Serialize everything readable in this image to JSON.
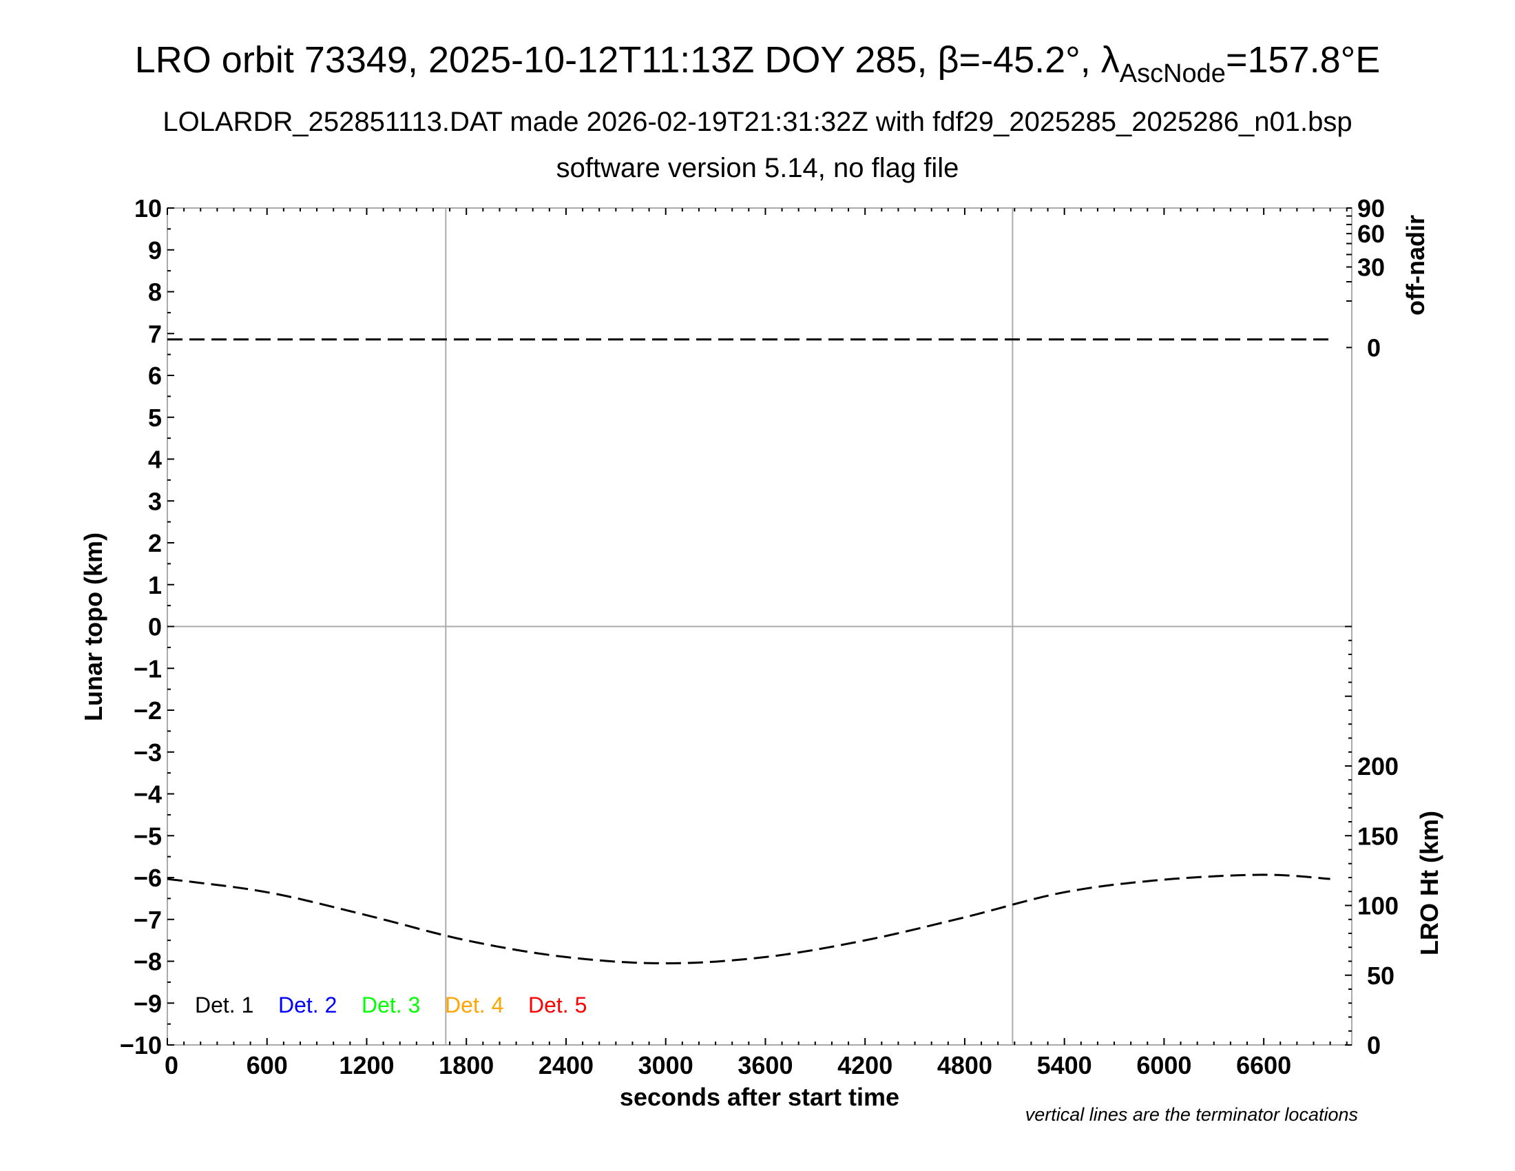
{
  "chart_data": {
    "type": "line",
    "title_main": "LRO orbit 73349, 2025-10-12T11:13Z DOY 285, β=-45.2°, λ",
    "title_sub": "AscNode",
    "title_end": "=157.8°E",
    "subtitle1": "LOLARDR_252851113.DAT made 2026-02-19T21:31:32Z with fdf29_2025285_2025286_n01.bsp",
    "subtitle2": "software version 5.14, no flag file",
    "xlabel": "seconds after start time",
    "ylabel": "Lunar topo (km)",
    "y2label_top": "off-nadir",
    "y2label_bottom": "LRO Ht (km)",
    "note": "vertical lines are the terminator locations",
    "xlim": [
      0,
      7130
    ],
    "ylim": [
      -10,
      10
    ],
    "x_ticks": [
      "0",
      "600",
      "1200",
      "1800",
      "2400",
      "3000",
      "3600",
      "4200",
      "4800",
      "5400",
      "6000",
      "6600"
    ],
    "y_ticks": [
      "10",
      "9",
      "8",
      "7",
      "6",
      "5",
      "4",
      "3",
      "2",
      "1",
      "0",
      "−1",
      "−2",
      "−3",
      "−4",
      "−5",
      "−6",
      "−7",
      "−8",
      "−9",
      "−10"
    ],
    "offnadir_ticks": [
      "0",
      "30",
      "60",
      "90"
    ],
    "offnadir_scale": "sqrt",
    "offnadir_range": [
      0,
      90
    ],
    "height_ticks": [
      "0",
      "50",
      "100",
      "150",
      "200"
    ],
    "height_range": [
      0,
      300
    ],
    "terminators_s": [
      1676,
      5088
    ],
    "legend": [
      {
        "label": "Det. 1",
        "color": "#000000"
      },
      {
        "label": "Det. 2",
        "color": "#0000ff"
      },
      {
        "label": "Det. 3",
        "color": "#00ff00"
      },
      {
        "label": "Det. 4",
        "color": "#ffa500"
      },
      {
        "label": "Det. 5",
        "color": "#ff0000"
      }
    ],
    "series": [
      {
        "role": "off-nadir (deg)",
        "style": "dashed",
        "x": [
          0,
          1000,
          2000,
          3000,
          4000,
          5000,
          6000,
          7000
        ],
        "values": [
          0.3,
          0.3,
          0.3,
          0.3,
          0.3,
          0.3,
          0.3,
          0.3
        ]
      },
      {
        "role": "LRO Ht (km)",
        "style": "dashed",
        "x": [
          0,
          600,
          1200,
          1800,
          2400,
          3000,
          3600,
          4200,
          4800,
          5400,
          6000,
          6600,
          7000
        ],
        "values": [
          119,
          109.5,
          93,
          75,
          63,
          58.5,
          63,
          75,
          91.5,
          109.5,
          118.5,
          122,
          119
        ]
      }
    ],
    "grid": {
      "terminator_lines": true,
      "zero_line": true
    }
  }
}
